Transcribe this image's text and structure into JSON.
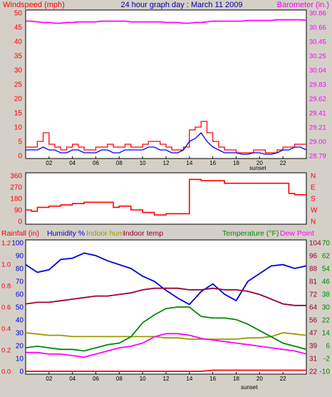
{
  "header": {
    "windspeed_label": "Windspeed (mph)",
    "title": "24 hour graph day : March 11 2009",
    "barometer_label": "Barometer (in.)"
  },
  "colors": {
    "background": "#d4d0c8",
    "plot_bg": "#ffffff",
    "wind_gust": "#ff0000",
    "wind_avg": "#0000ff",
    "barometer": "#ff00ff",
    "direction": "#ff0000",
    "rainfall": "#ff0000",
    "humidity": "#0000dd",
    "indoor_hum": "#999900",
    "indoor_temp": "#990033",
    "temperature": "#008800",
    "dew_point": "#ff00ff"
  },
  "x_axis": {
    "ticks": [
      "02",
      "04",
      "06",
      "08",
      "10",
      "12",
      "14",
      "16",
      "18",
      "20",
      "22"
    ],
    "sunset_label": "sunset"
  },
  "chart_data": [
    {
      "type": "line",
      "title": "24 hour graph day : March 11 2009",
      "left_axis_label": "Windspeed (mph)",
      "left_ticks": [
        "0",
        "5",
        "10",
        "15",
        "20",
        "25",
        "30",
        "35",
        "40",
        "45",
        "50"
      ],
      "left_ylim": [
        0,
        50
      ],
      "right_axis_label": "Barometer (in.)",
      "right_ticks": [
        "28.79",
        "29.00",
        "29.21",
        "29.41",
        "29.62",
        "29.83",
        "30.04",
        "30.25",
        "30.45",
        "30.66",
        "30.86"
      ],
      "right_ylim": [
        28.79,
        30.86
      ],
      "x_hours": [
        0,
        0.5,
        1,
        1.5,
        2,
        2.5,
        3,
        3.5,
        4,
        4.5,
        5,
        5.5,
        6,
        6.5,
        7,
        7.5,
        8,
        8.5,
        9,
        9.5,
        10,
        10.5,
        11,
        11.5,
        12,
        12.5,
        13,
        13.5,
        14,
        14.5,
        15,
        15.5,
        16,
        16.5,
        17,
        17.5,
        18,
        18.5,
        19,
        19.5,
        20,
        20.5,
        21,
        21.5,
        22,
        22.5,
        23,
        23.5,
        24
      ],
      "series": [
        {
          "name": "Gust",
          "axis": "left",
          "values": [
            3,
            3,
            5,
            8,
            4,
            3,
            2,
            3,
            4,
            3,
            2,
            2,
            3,
            3,
            4,
            3,
            3,
            4,
            3,
            3,
            4,
            5,
            5,
            4,
            3,
            2,
            2,
            3,
            9,
            10,
            12,
            8,
            5,
            3,
            2,
            2,
            1,
            1,
            1,
            2,
            2,
            1,
            1,
            2,
            3,
            3,
            4,
            4,
            4
          ]
        },
        {
          "name": "Average",
          "axis": "left",
          "values": [
            2,
            2,
            2,
            3,
            2,
            2,
            1,
            1,
            2,
            2,
            1,
            1,
            1,
            2,
            2,
            1,
            1,
            2,
            2,
            2,
            2,
            3,
            3,
            2,
            2,
            1,
            1,
            2,
            5,
            6,
            8,
            5,
            3,
            2,
            1,
            1,
            1,
            0.5,
            0.5,
            1,
            1,
            0.5,
            0.5,
            1,
            2,
            2,
            3,
            3,
            2
          ]
        },
        {
          "name": "Barometer",
          "axis": "right",
          "values": [
            30.74,
            30.74,
            30.73,
            30.72,
            30.72,
            30.71,
            30.71,
            30.72,
            30.72,
            30.73,
            30.73,
            30.73,
            30.73,
            30.74,
            30.74,
            30.74,
            30.74,
            30.74,
            30.73,
            30.73,
            30.73,
            30.73,
            30.73,
            30.73,
            30.72,
            30.72,
            30.72,
            30.71,
            30.71,
            30.72,
            30.72,
            30.73,
            30.74,
            30.74,
            30.74,
            30.74,
            30.74,
            30.74,
            30.75,
            30.75,
            30.75,
            30.75,
            30.75,
            30.76,
            30.76,
            30.76,
            30.76,
            30.76,
            30.75
          ]
        }
      ]
    },
    {
      "type": "line",
      "title": "",
      "left_ticks": [
        "0",
        "90",
        "180",
        "270",
        "360"
      ],
      "left_ylim": [
        0,
        360
      ],
      "right_ticks": [
        "N",
        "W",
        "S",
        "E",
        "N"
      ],
      "x_hours": [
        0,
        0.5,
        1,
        2,
        3,
        4,
        5,
        6,
        7,
        7.5,
        8,
        9,
        10,
        11,
        12,
        13,
        13.5,
        14,
        15,
        16,
        17,
        18,
        19,
        20,
        21,
        22,
        22.5,
        23,
        24
      ],
      "series": [
        {
          "name": "Wind Direction",
          "values": [
            90,
            80,
            110,
            120,
            130,
            140,
            150,
            150,
            150,
            110,
            120,
            90,
            70,
            50,
            60,
            60,
            60,
            330,
            320,
            320,
            300,
            300,
            300,
            300,
            300,
            300,
            220,
            210,
            220
          ]
        }
      ]
    },
    {
      "type": "line",
      "title": "",
      "labels": {
        "rainfall": "Rainfall (in)",
        "humidity": "Humidity %",
        "indoor_hum": "Indoor hum",
        "indoor_temp": "Indoor temp",
        "temperature": "Temperature (°F)",
        "dew_point": "Dew Point"
      },
      "rain_ticks": [
        "0.0",
        "0.2",
        "0.4",
        "0.6",
        "0.8",
        "1.0",
        "1.2"
      ],
      "rain_ylim": [
        0,
        1.2
      ],
      "hum_ticks": [
        "0",
        "10",
        "20",
        "30",
        "40",
        "50",
        "60",
        "70",
        "80",
        "90",
        "100"
      ],
      "hum_ylim": [
        0,
        100
      ],
      "temp_ticks_left": [
        "22",
        "31",
        "39",
        "47",
        "56",
        "64",
        "72",
        "81",
        "88",
        "96",
        "104"
      ],
      "temp_ticks_right": [
        "-10",
        "-2",
        "6",
        "14",
        "22",
        "30",
        "38",
        "46",
        "54",
        "62",
        "70"
      ],
      "temp_ylim": [
        22,
        104
      ],
      "x_hours": [
        0,
        1,
        2,
        3,
        4,
        5,
        6,
        7,
        8,
        9,
        10,
        11,
        12,
        13,
        14,
        15,
        16,
        17,
        18,
        19,
        20,
        21,
        22,
        23,
        24
      ],
      "series": [
        {
          "name": "Rainfall (in)",
          "axis": "rain",
          "values": [
            0,
            0,
            0,
            0,
            0,
            0,
            0,
            0,
            0,
            0,
            0,
            0,
            0,
            0,
            0,
            0,
            0.01,
            0.01,
            0.01,
            0.01,
            0.01,
            0.01,
            0.01,
            0.01,
            0.01
          ]
        },
        {
          "name": "Humidity %",
          "axis": "hum",
          "values": [
            83,
            77,
            79,
            87,
            88,
            92,
            90,
            86,
            83,
            80,
            74,
            70,
            63,
            57,
            52,
            62,
            68,
            60,
            55,
            70,
            76,
            82,
            83,
            80,
            82
          ]
        },
        {
          "name": "Indoor hum",
          "axis": "hum",
          "values": [
            30,
            29,
            28,
            28,
            27,
            27,
            27,
            27,
            27,
            27,
            27,
            27,
            26,
            26,
            25,
            25,
            25,
            25,
            25,
            26,
            26,
            27,
            30,
            29,
            28
          ]
        },
        {
          "name": "Indoor temp",
          "axis": "temp",
          "values": [
            65,
            66,
            66,
            67,
            68,
            69,
            70,
            70,
            71,
            72,
            74,
            75,
            75,
            75,
            74,
            74,
            75,
            74,
            74,
            73,
            71,
            68,
            65,
            64,
            64
          ]
        },
        {
          "name": "Temperature (°F)",
          "axis": "temp",
          "values": [
            37,
            38,
            37,
            36,
            36,
            35,
            37,
            39,
            40,
            44,
            53,
            58,
            62,
            63,
            63,
            57,
            56,
            56,
            55,
            52,
            48,
            44,
            40,
            38,
            36
          ]
        },
        {
          "name": "Dew Point",
          "axis": "temp",
          "values": [
            34,
            34,
            33,
            33,
            32,
            31,
            33,
            35,
            37,
            38,
            40,
            44,
            46,
            46,
            45,
            43,
            42,
            41,
            40,
            39,
            38,
            37,
            36,
            35,
            33
          ]
        }
      ]
    }
  ]
}
